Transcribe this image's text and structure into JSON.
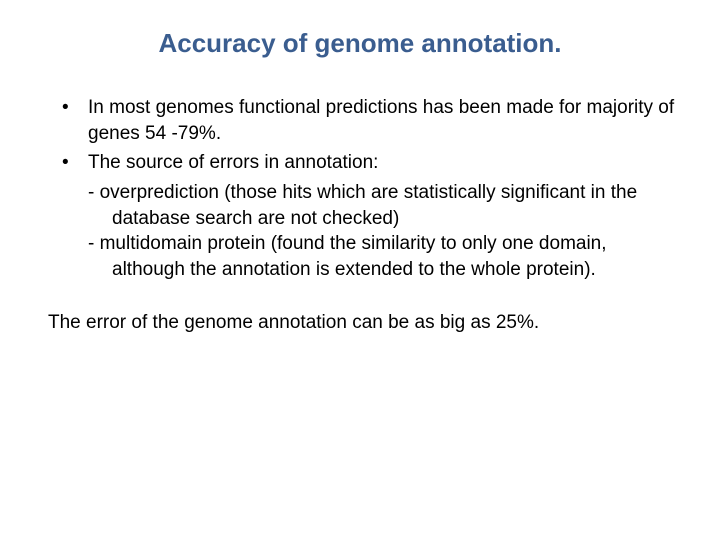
{
  "colors": {
    "title_color": "#3a5d8f",
    "body_color": "#000000",
    "background_color": "#ffffff"
  },
  "typography": {
    "title_fontsize": 26,
    "body_fontsize": 19,
    "font_family": "Arial"
  },
  "title": "Accuracy of genome annotation.",
  "bullets": [
    {
      "text": "In most genomes functional predictions has been made for majority of genes 54 -79%."
    },
    {
      "text": "The source of errors in annotation:",
      "subitems": [
        "- overprediction (those hits which are statistically significant in the database search are not checked)",
        "- multidomain protein (found the similarity to only one domain, although the annotation is extended to the whole protein)."
      ]
    }
  ],
  "closing": "The error of the genome annotation can be as big as 25%."
}
